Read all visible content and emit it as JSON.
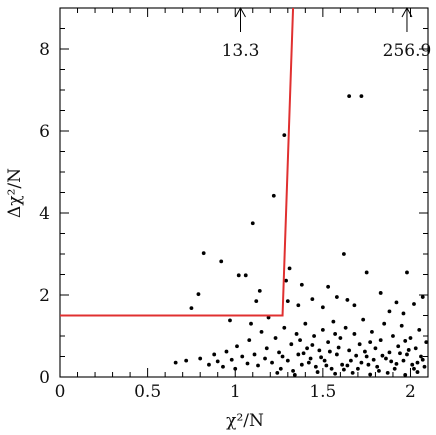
{
  "chart_data": {
    "type": "scatter",
    "title": "",
    "xlabel": "χ²/N",
    "ylabel": "Δχ²/N",
    "xlim": [
      0,
      2.1
    ],
    "ylim": [
      0,
      9
    ],
    "x_ticks": [
      {
        "value": 0,
        "label": "0"
      },
      {
        "value": 0.5,
        "label": "0.5"
      },
      {
        "value": 1,
        "label": "1"
      },
      {
        "value": 1.5,
        "label": "1.5"
      },
      {
        "value": 2,
        "label": "2"
      }
    ],
    "y_ticks": [
      {
        "value": 0,
        "label": "0"
      },
      {
        "value": 2,
        "label": "2"
      },
      {
        "value": 4,
        "label": "4"
      },
      {
        "value": 6,
        "label": "6"
      },
      {
        "value": 8,
        "label": "8"
      }
    ],
    "grid": false,
    "legend": "none",
    "point_color": "#000000",
    "line_color": "#e03030",
    "cut_line": {
      "x": [
        0,
        1.27,
        1.33
      ],
      "y": [
        1.5,
        1.5,
        9
      ]
    },
    "annotations": [
      {
        "x": 1.03,
        "text": "13.3"
      },
      {
        "x": 1.98,
        "text": "256.9"
      }
    ],
    "points": [
      [
        1.65,
        6.85
      ],
      [
        1.72,
        6.85
      ],
      [
        1.28,
        5.9
      ],
      [
        1.22,
        4.42
      ],
      [
        1.1,
        3.75
      ],
      [
        0.82,
        3.02
      ],
      [
        0.92,
        2.82
      ],
      [
        1.62,
        3.0
      ],
      [
        1.02,
        2.48
      ],
      [
        1.06,
        2.48
      ],
      [
        1.31,
        2.65
      ],
      [
        1.29,
        2.35
      ],
      [
        1.38,
        2.25
      ],
      [
        1.53,
        2.2
      ],
      [
        1.75,
        2.55
      ],
      [
        1.98,
        2.55
      ],
      [
        0.75,
        1.68
      ],
      [
        0.79,
        2.02
      ],
      [
        1.19,
        1.45
      ],
      [
        1.14,
        2.1
      ],
      [
        1.12,
        1.85
      ],
      [
        1.3,
        1.85
      ],
      [
        1.44,
        1.9
      ],
      [
        1.58,
        1.95
      ],
      [
        1.64,
        1.88
      ],
      [
        1.83,
        2.05
      ],
      [
        1.92,
        1.82
      ],
      [
        2.02,
        1.78
      ],
      [
        2.07,
        1.95
      ],
      [
        1.36,
        1.75
      ],
      [
        1.5,
        1.7
      ],
      [
        1.68,
        1.75
      ],
      [
        1.88,
        1.6
      ],
      [
        1.96,
        1.55
      ],
      [
        0.97,
        1.38
      ],
      [
        1.09,
        1.3
      ],
      [
        0.66,
        0.35
      ],
      [
        0.72,
        0.4
      ],
      [
        0.8,
        0.45
      ],
      [
        0.85,
        0.3
      ],
      [
        0.88,
        0.55
      ],
      [
        0.9,
        0.38
      ],
      [
        0.93,
        0.25
      ],
      [
        0.95,
        0.62
      ],
      [
        0.98,
        0.42
      ],
      [
        1.0,
        0.2
      ],
      [
        1.01,
        0.75
      ],
      [
        1.04,
        0.5
      ],
      [
        1.07,
        0.33
      ],
      [
        1.08,
        0.9
      ],
      [
        1.11,
        0.55
      ],
      [
        1.13,
        0.28
      ],
      [
        1.15,
        1.1
      ],
      [
        1.17,
        0.45
      ],
      [
        1.18,
        0.7
      ],
      [
        1.21,
        0.35
      ],
      [
        1.23,
        0.95
      ],
      [
        1.25,
        0.6
      ],
      [
        1.26,
        0.2
      ],
      [
        1.28,
        1.2
      ],
      [
        1.3,
        0.4
      ],
      [
        1.32,
        0.8
      ],
      [
        1.33,
        0.15
      ],
      [
        1.35,
        1.05
      ],
      [
        1.36,
        0.55
      ],
      [
        1.38,
        0.3
      ],
      [
        1.4,
        1.3
      ],
      [
        1.41,
        0.7
      ],
      [
        1.43,
        0.45
      ],
      [
        1.45,
        1.0
      ],
      [
        1.46,
        0.25
      ],
      [
        1.48,
        0.65
      ],
      [
        1.5,
        1.15
      ],
      [
        1.51,
        0.4
      ],
      [
        1.53,
        0.85
      ],
      [
        1.55,
        0.2
      ],
      [
        1.56,
        1.35
      ],
      [
        1.58,
        0.55
      ],
      [
        1.6,
        0.95
      ],
      [
        1.61,
        0.3
      ],
      [
        1.63,
        1.2
      ],
      [
        1.65,
        0.65
      ],
      [
        1.66,
        0.4
      ],
      [
        1.68,
        1.05
      ],
      [
        1.7,
        0.2
      ],
      [
        1.71,
        0.8
      ],
      [
        1.73,
        1.4
      ],
      [
        1.75,
        0.5
      ],
      [
        1.76,
        0.3
      ],
      [
        1.78,
        1.1
      ],
      [
        1.8,
        0.7
      ],
      [
        1.81,
        0.25
      ],
      [
        1.83,
        0.9
      ],
      [
        1.85,
        1.3
      ],
      [
        1.86,
        0.45
      ],
      [
        1.88,
        0.6
      ],
      [
        1.9,
        1.0
      ],
      [
        1.91,
        0.2
      ],
      [
        1.93,
        0.75
      ],
      [
        1.95,
        1.25
      ],
      [
        1.96,
        0.4
      ],
      [
        1.98,
        0.55
      ],
      [
        2.0,
        0.95
      ],
      [
        2.01,
        0.3
      ],
      [
        2.03,
        0.7
      ],
      [
        2.05,
        1.15
      ],
      [
        2.06,
        0.5
      ],
      [
        2.08,
        0.25
      ],
      [
        2.09,
        0.85
      ],
      [
        1.24,
        0.1
      ],
      [
        1.34,
        0.05
      ],
      [
        1.47,
        0.12
      ],
      [
        1.57,
        0.08
      ],
      [
        1.67,
        0.1
      ],
      [
        1.77,
        0.06
      ],
      [
        1.87,
        0.1
      ],
      [
        1.97,
        0.05
      ],
      [
        2.04,
        0.12
      ],
      [
        1.42,
        0.35
      ],
      [
        1.52,
        0.28
      ],
      [
        1.62,
        0.18
      ],
      [
        1.72,
        0.35
      ],
      [
        1.82,
        0.15
      ],
      [
        1.92,
        0.32
      ],
      [
        2.02,
        0.2
      ],
      [
        1.39,
        0.58
      ],
      [
        1.49,
        0.48
      ],
      [
        1.59,
        0.72
      ],
      [
        1.69,
        0.52
      ],
      [
        1.79,
        0.42
      ],
      [
        1.89,
        0.38
      ],
      [
        1.99,
        0.66
      ],
      [
        2.07,
        0.42
      ],
      [
        1.44,
        0.78
      ],
      [
        1.54,
        0.62
      ],
      [
        1.64,
        0.28
      ],
      [
        1.74,
        0.62
      ],
      [
        1.84,
        0.52
      ],
      [
        1.94,
        0.58
      ],
      [
        2.04,
        0.35
      ],
      [
        1.27,
        0.5
      ],
      [
        1.37,
        0.9
      ],
      [
        1.57,
        1.05
      ],
      [
        1.77,
        0.85
      ],
      [
        1.97,
        0.88
      ]
    ]
  }
}
